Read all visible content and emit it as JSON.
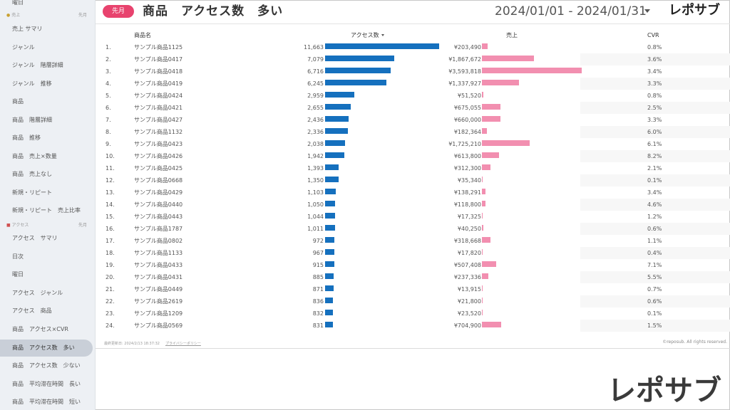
{
  "sidebar": {
    "items_top": [
      "曜日",
      "売上 サマリ",
      "ジャンル",
      "ジャンル　階層詳細",
      "ジャンル　推移",
      "商品",
      "商品　階層詳細",
      "商品　推移",
      "商品　売上×数量",
      "商品　売上なし",
      "新規・リピート",
      "新規・リピート　売上比率"
    ],
    "section_sales": {
      "label": "売上",
      "period": "先月"
    },
    "section_access": {
      "label": "アクセス",
      "period": "先月"
    },
    "items_access": [
      "アクセス　サマリ",
      "日次",
      "曜日",
      "アクセス　ジャンル",
      "アクセス　商品",
      "商品　アクセス×CVR",
      "商品　アクセス数　多い",
      "商品　アクセス数　少ない",
      "商品　平均滞在時間　長い",
      "商品　平均滞在時間　短い"
    ],
    "active_label": "商品　アクセス数　多い"
  },
  "header": {
    "badge": "先月",
    "title": "商品　アクセス数　多い",
    "date_range": "2024/01/01 - 2024/01/31",
    "logo": "レポサブ"
  },
  "table": {
    "columns": {
      "name": "商品名",
      "access": "アクセス数",
      "sales": "売上",
      "cvr": "CVR"
    },
    "max_access": 11663,
    "max_sales": 3593818,
    "rows": [
      {
        "rank": "1.",
        "name": "サンプル商品1125",
        "access": 11663,
        "access_label": "11,663",
        "sales": 203490,
        "sales_label": "¥203,490",
        "cvr": "0.8%"
      },
      {
        "rank": "2.",
        "name": "サンプル商品0417",
        "access": 7079,
        "access_label": "7,079",
        "sales": 1867672,
        "sales_label": "¥1,867,672",
        "cvr": "3.6%"
      },
      {
        "rank": "3.",
        "name": "サンプル商品0418",
        "access": 6716,
        "access_label": "6,716",
        "sales": 3593818,
        "sales_label": "¥3,593,818",
        "cvr": "3.4%"
      },
      {
        "rank": "4.",
        "name": "サンプル商品0419",
        "access": 6245,
        "access_label": "6,245",
        "sales": 1337927,
        "sales_label": "¥1,337,927",
        "cvr": "3.3%"
      },
      {
        "rank": "5.",
        "name": "サンプル商品0424",
        "access": 2959,
        "access_label": "2,959",
        "sales": 51520,
        "sales_label": "¥51,520",
        "cvr": "0.8%"
      },
      {
        "rank": "6.",
        "name": "サンプル商品0421",
        "access": 2655,
        "access_label": "2,655",
        "sales": 675055,
        "sales_label": "¥675,055",
        "cvr": "2.5%"
      },
      {
        "rank": "7.",
        "name": "サンプル商品0427",
        "access": 2436,
        "access_label": "2,436",
        "sales": 660000,
        "sales_label": "¥660,000",
        "cvr": "3.3%"
      },
      {
        "rank": "8.",
        "name": "サンプル商品1132",
        "access": 2336,
        "access_label": "2,336",
        "sales": 182364,
        "sales_label": "¥182,364",
        "cvr": "6.0%"
      },
      {
        "rank": "9.",
        "name": "サンプル商品0423",
        "access": 2038,
        "access_label": "2,038",
        "sales": 1725210,
        "sales_label": "¥1,725,210",
        "cvr": "6.1%"
      },
      {
        "rank": "10.",
        "name": "サンプル商品0426",
        "access": 1942,
        "access_label": "1,942",
        "sales": 613800,
        "sales_label": "¥613,800",
        "cvr": "8.2%"
      },
      {
        "rank": "11.",
        "name": "サンプル商品0425",
        "access": 1393,
        "access_label": "1,393",
        "sales": 312300,
        "sales_label": "¥312,300",
        "cvr": "2.1%"
      },
      {
        "rank": "12.",
        "name": "サンプル商品0668",
        "access": 1350,
        "access_label": "1,350",
        "sales": 35340,
        "sales_label": "¥35,340",
        "cvr": "0.1%"
      },
      {
        "rank": "13.",
        "name": "サンプル商品0429",
        "access": 1103,
        "access_label": "1,103",
        "sales": 138291,
        "sales_label": "¥138,291",
        "cvr": "3.4%"
      },
      {
        "rank": "14.",
        "name": "サンプル商品0440",
        "access": 1050,
        "access_label": "1,050",
        "sales": 118800,
        "sales_label": "¥118,800",
        "cvr": "4.6%"
      },
      {
        "rank": "15.",
        "name": "サンプル商品0443",
        "access": 1044,
        "access_label": "1,044",
        "sales": 17325,
        "sales_label": "¥17,325",
        "cvr": "1.2%"
      },
      {
        "rank": "16.",
        "name": "サンプル商品1787",
        "access": 1011,
        "access_label": "1,011",
        "sales": 40250,
        "sales_label": "¥40,250",
        "cvr": "0.6%"
      },
      {
        "rank": "17.",
        "name": "サンプル商品0802",
        "access": 972,
        "access_label": "972",
        "sales": 318668,
        "sales_label": "¥318,668",
        "cvr": "1.1%"
      },
      {
        "rank": "18.",
        "name": "サンプル商品1133",
        "access": 967,
        "access_label": "967",
        "sales": 17820,
        "sales_label": "¥17,820",
        "cvr": "0.4%"
      },
      {
        "rank": "19.",
        "name": "サンプル商品0433",
        "access": 915,
        "access_label": "915",
        "sales": 507408,
        "sales_label": "¥507,408",
        "cvr": "7.1%"
      },
      {
        "rank": "20.",
        "name": "サンプル商品0431",
        "access": 885,
        "access_label": "885",
        "sales": 237336,
        "sales_label": "¥237,336",
        "cvr": "5.5%"
      },
      {
        "rank": "21.",
        "name": "サンプル商品0449",
        "access": 871,
        "access_label": "871",
        "sales": 13915,
        "sales_label": "¥13,915",
        "cvr": "0.7%"
      },
      {
        "rank": "22.",
        "name": "サンプル商品2619",
        "access": 836,
        "access_label": "836",
        "sales": 21800,
        "sales_label": "¥21,800",
        "cvr": "0.6%"
      },
      {
        "rank": "23.",
        "name": "サンプル商品1209",
        "access": 832,
        "access_label": "832",
        "sales": 23520,
        "sales_label": "¥23,520",
        "cvr": "0.1%"
      },
      {
        "rank": "24.",
        "name": "サンプル商品0569",
        "access": 831,
        "access_label": "831",
        "sales": 704900,
        "sales_label": "¥704,900",
        "cvr": "1.5%"
      }
    ]
  },
  "footer": {
    "updated": "最終更新日: 2024/2/13 18:37:32",
    "privacy": "プライバシーポリシー",
    "rights": "©reposub. All rights reserved."
  },
  "brand_logo": "レポサブ",
  "colors": {
    "accent": "#e8436e",
    "access_bar": "#1570be",
    "sales_bar": "#f28fb0",
    "sidebar_bg": "#edf0f4"
  }
}
